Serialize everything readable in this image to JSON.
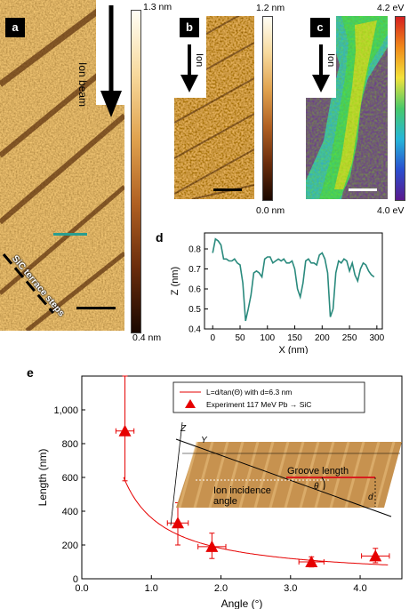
{
  "panel_a": {
    "label": "a",
    "arrow_label": "Ion beam",
    "steps_label": "SiC terrace steps",
    "colorbar_max": "1.3 nm",
    "colorbar_min": "0.4 nm"
  },
  "panel_b": {
    "label": "b",
    "arrow_label": "Ion",
    "colorbar_max": "1.2 nm",
    "colorbar_min": "0.0 nm"
  },
  "panel_c": {
    "label": "c",
    "arrow_label": "Ion",
    "colorbar_max": "4.2 eV",
    "colorbar_min": "4.0 eV"
  },
  "panel_d": {
    "label": "d"
  },
  "panel_e": {
    "label": "e"
  },
  "chart_data": [
    {
      "panel": "d",
      "type": "line",
      "xlabel": "X (nm)",
      "ylabel": "Z (nm)",
      "xlim": [
        -15,
        310
      ],
      "ylim": [
        0.4,
        0.88
      ],
      "xticks": [
        0,
        50,
        100,
        150,
        200,
        250,
        300
      ],
      "yticks": [
        0.4,
        0.5,
        0.6,
        0.7,
        0.8
      ],
      "color": "#2a8a7d",
      "series": [
        {
          "x": [
            0,
            5,
            10,
            15,
            20,
            25,
            30,
            35,
            40,
            45,
            50,
            55,
            60,
            65,
            70,
            75,
            80,
            85,
            90,
            95,
            100,
            105,
            110,
            115,
            120,
            125,
            130,
            135,
            140,
            145,
            150,
            155,
            160,
            165,
            170,
            175,
            180,
            185,
            190,
            195,
            200,
            205,
            210,
            215,
            220,
            225,
            230,
            235,
            240,
            245,
            250,
            255,
            260,
            265,
            270,
            275,
            280,
            285,
            290,
            295
          ],
          "y": [
            0.78,
            0.85,
            0.84,
            0.82,
            0.75,
            0.75,
            0.74,
            0.74,
            0.75,
            0.73,
            0.72,
            0.63,
            0.44,
            0.5,
            0.57,
            0.68,
            0.69,
            0.68,
            0.66,
            0.75,
            0.76,
            0.76,
            0.73,
            0.74,
            0.75,
            0.74,
            0.75,
            0.73,
            0.73,
            0.74,
            0.7,
            0.6,
            0.56,
            0.63,
            0.74,
            0.75,
            0.73,
            0.73,
            0.72,
            0.77,
            0.78,
            0.75,
            0.68,
            0.46,
            0.5,
            0.68,
            0.74,
            0.73,
            0.75,
            0.74,
            0.69,
            0.73,
            0.67,
            0.64,
            0.7,
            0.73,
            0.72,
            0.69,
            0.67,
            0.66
          ]
        }
      ]
    },
    {
      "panel": "e",
      "type": "scatter",
      "xlabel": "Angle (°)",
      "ylabel": "Length (nm)",
      "xlim": [
        0,
        4.6
      ],
      "ylim": [
        0,
        1200
      ],
      "xticks": [
        "0.0",
        "1.0",
        "2.0",
        "3.0",
        "4.0"
      ],
      "yticks": [
        "0",
        "200",
        "400",
        "600",
        "800",
        "1,000"
      ],
      "legend": [
        "L=d/tan(Θ) with d=6.3 nm",
        "Experiment 117 MeV Pb → SiC"
      ],
      "points": [
        {
          "x": 0.62,
          "y": 875,
          "xerr": 0.13,
          "ylo": 580,
          "yhi": 1200
        },
        {
          "x": 1.38,
          "y": 330,
          "xerr": 0.15,
          "ylo": 200,
          "yhi": 450
        },
        {
          "x": 1.87,
          "y": 190,
          "xerr": 0.2,
          "ylo": 120,
          "yhi": 270
        },
        {
          "x": 3.3,
          "y": 100,
          "xerr": 0.18,
          "ylo": 70,
          "yhi": 130
        },
        {
          "x": 4.22,
          "y": 135,
          "xerr": 0.2,
          "ylo": 95,
          "yhi": 180
        }
      ],
      "curve_d_nm": 6.3,
      "color": "#e60000"
    }
  ],
  "inset": {
    "axis_z": "Z",
    "axis_y": "Y",
    "groove_label": "Groove length",
    "angle_symbol": "θ",
    "d_symbol": "d",
    "ion_label": "Ion incidence\nangle"
  }
}
